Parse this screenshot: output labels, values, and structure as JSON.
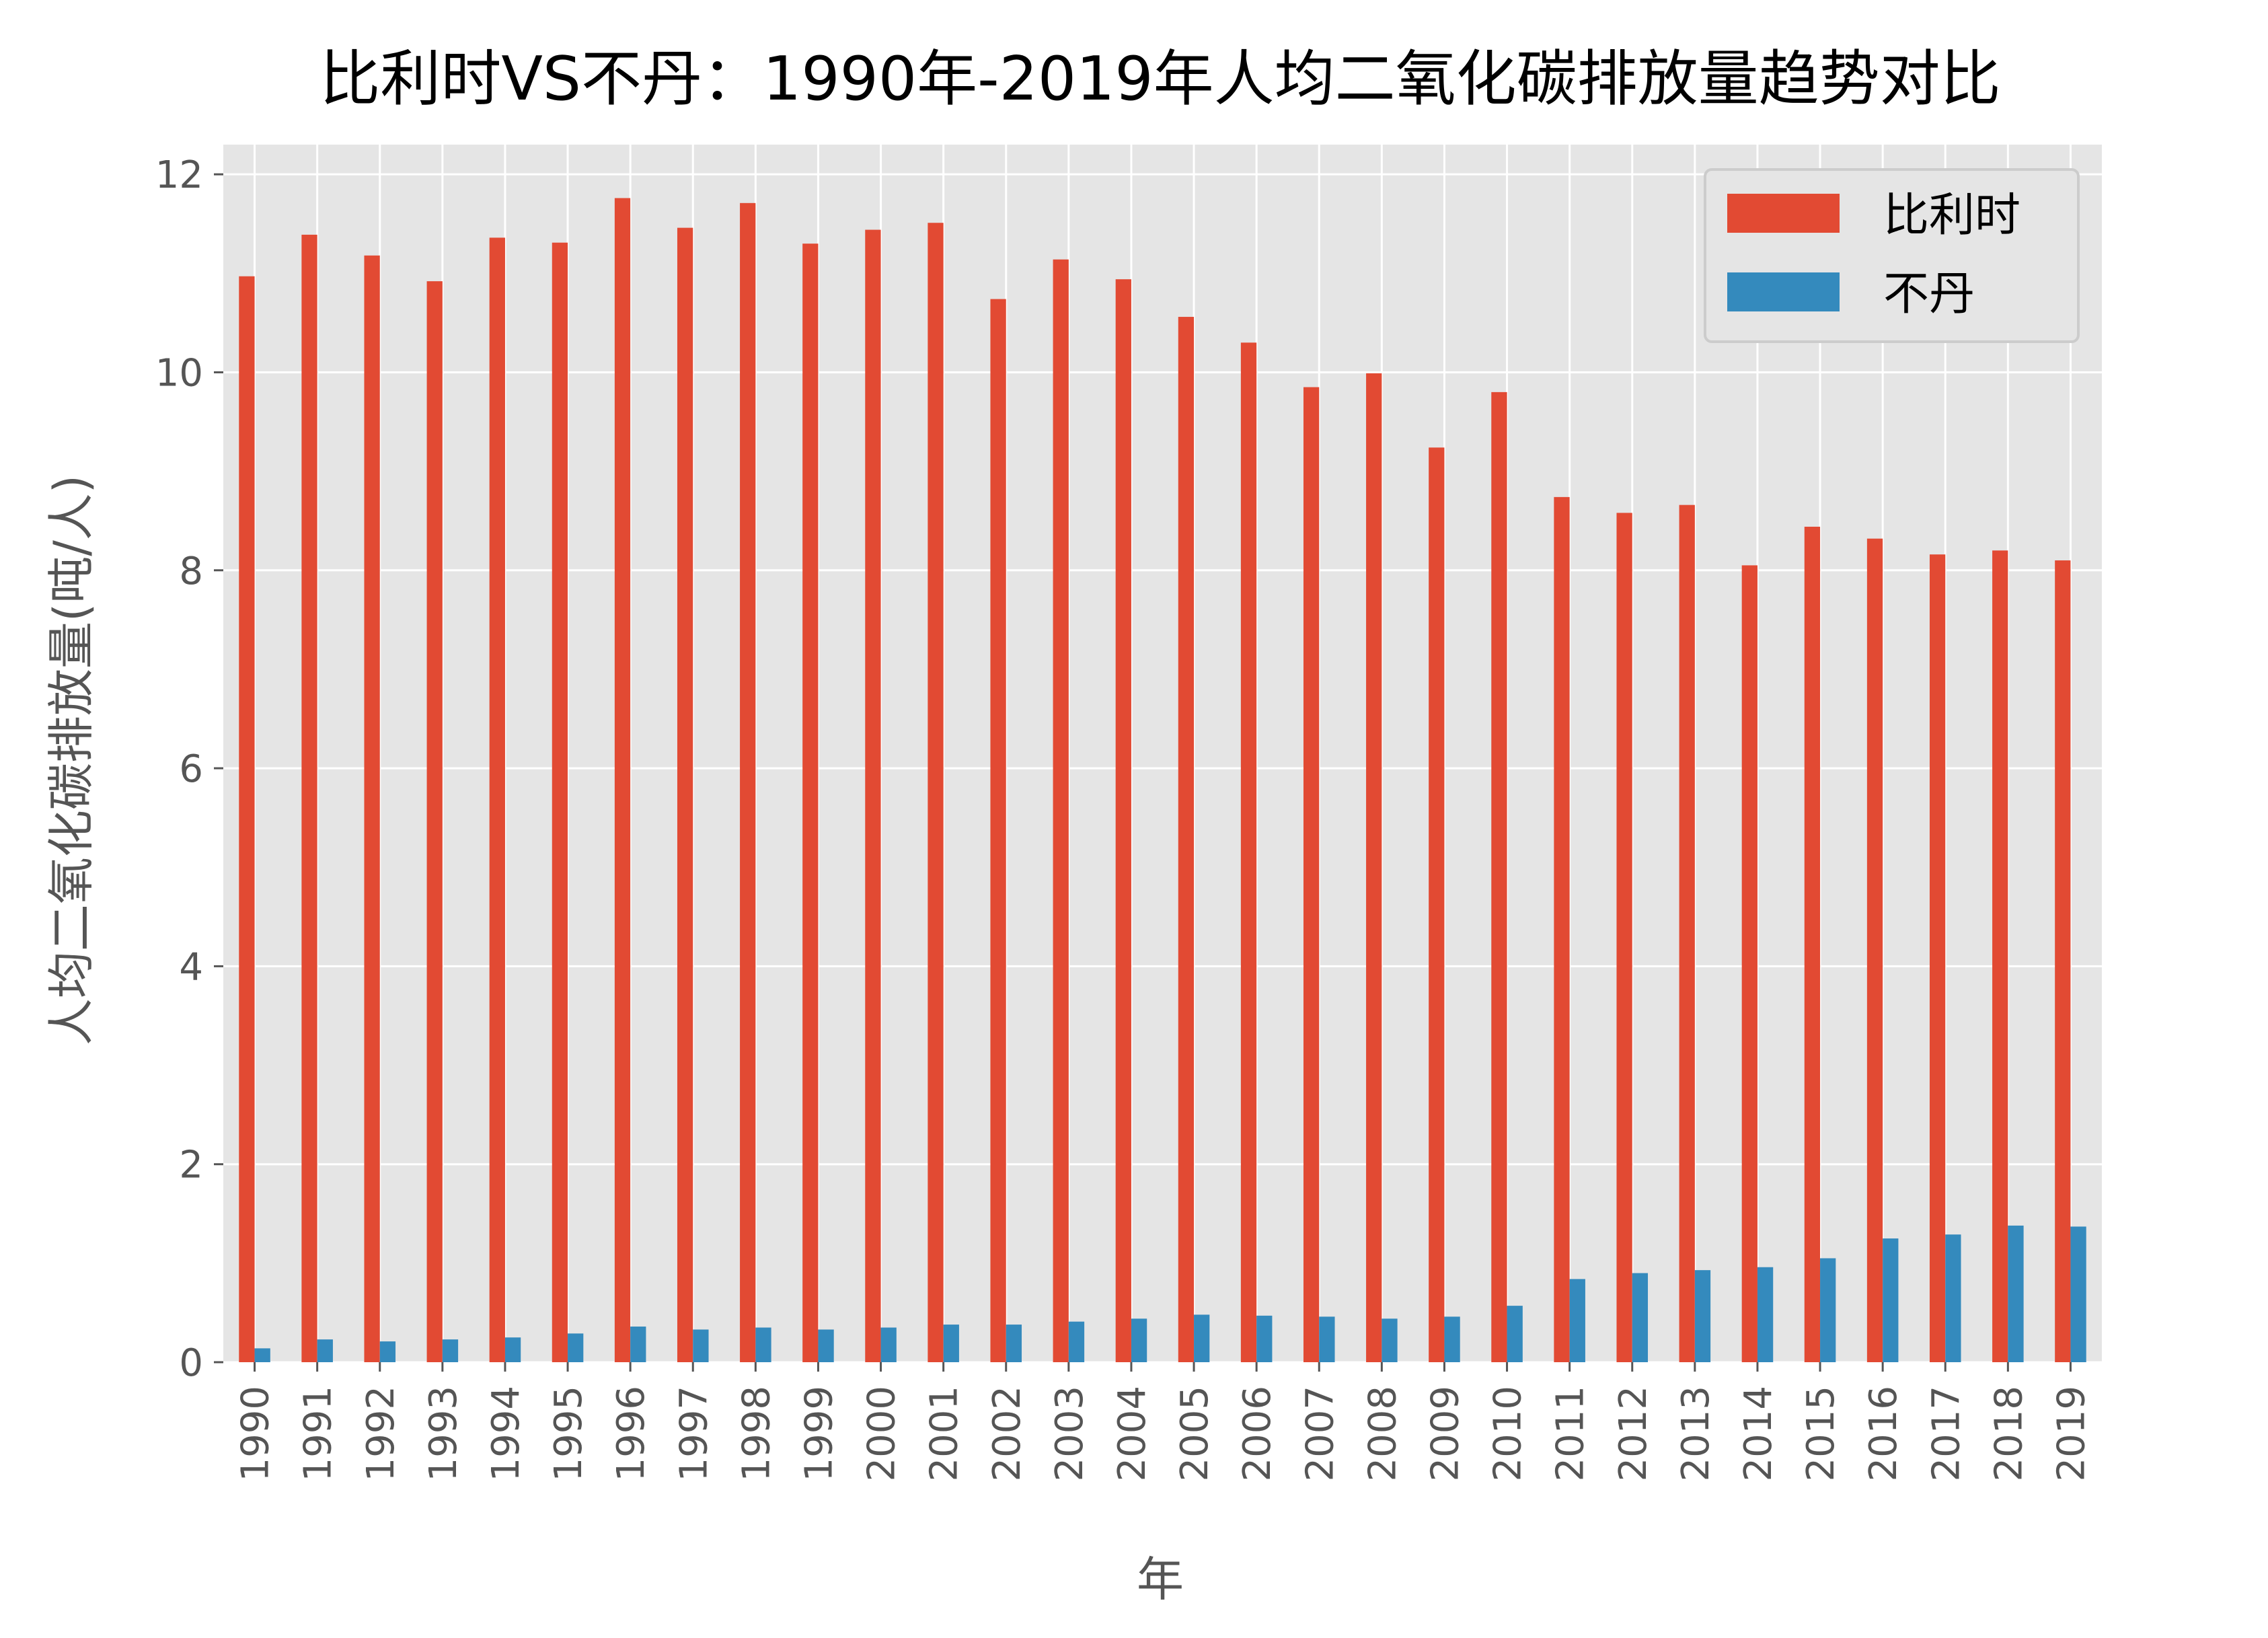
{
  "chart_data": {
    "type": "bar",
    "title": "比利时VS不丹：1990年-2019年人均二氧化碳排放量趋势对比",
    "xlabel": "年",
    "ylabel": "人均二氧化碳排放量(吨/人)",
    "ylim": [
      0,
      12.3
    ],
    "yticks": [
      0,
      2,
      4,
      6,
      8,
      10,
      12
    ],
    "grid": true,
    "legend_position": "top-right",
    "categories": [
      "1990",
      "1991",
      "1992",
      "1993",
      "1994",
      "1995",
      "1996",
      "1997",
      "1998",
      "1999",
      "2000",
      "2001",
      "2002",
      "2003",
      "2004",
      "2005",
      "2006",
      "2007",
      "2008",
      "2009",
      "2010",
      "2011",
      "2012",
      "2013",
      "2014",
      "2015",
      "2016",
      "2017",
      "2018",
      "2019"
    ],
    "series": [
      {
        "name": "比利时",
        "color": "#E24A33",
        "values": [
          10.97,
          11.39,
          11.18,
          10.92,
          11.36,
          11.31,
          11.76,
          11.46,
          11.71,
          11.3,
          11.44,
          11.51,
          10.74,
          11.14,
          10.94,
          10.56,
          10.3,
          9.85,
          9.99,
          9.24,
          9.8,
          8.74,
          8.58,
          8.66,
          8.05,
          8.44,
          8.32,
          8.16,
          8.2,
          8.1
        ]
      },
      {
        "name": "不丹",
        "color": "#348ABD",
        "values": [
          0.14,
          0.23,
          0.21,
          0.23,
          0.25,
          0.29,
          0.36,
          0.33,
          0.35,
          0.33,
          0.35,
          0.38,
          0.38,
          0.41,
          0.44,
          0.48,
          0.47,
          0.46,
          0.44,
          0.46,
          0.57,
          0.84,
          0.9,
          0.93,
          0.96,
          1.05,
          1.25,
          1.29,
          1.38,
          1.37
        ]
      }
    ]
  }
}
